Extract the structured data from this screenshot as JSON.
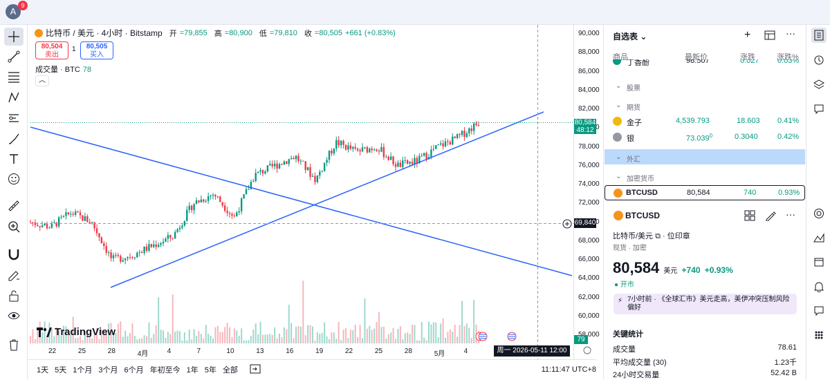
{
  "topbar": {
    "avatar_letter": "A",
    "notification_count": "9"
  },
  "chart": {
    "symbol_line": "比特币 / 美元 · 4小时 · Bitstamp",
    "ohlc": [
      {
        "label": "开",
        "value": "=79,855"
      },
      {
        "label": "高",
        "value": "=80,900"
      },
      {
        "label": "低",
        "value": "=79,810"
      },
      {
        "label": "收",
        "value": "=80,505"
      },
      {
        "label": "change",
        "value": "+661 (+0.83%)"
      }
    ],
    "sell_price": "80,504",
    "sell_label": "卖出",
    "spread": "1",
    "buy_price": "80,505",
    "buy_label": "买入",
    "volume_label": "成交量 · BTC",
    "volume_value": "78",
    "y_ticks": [
      "90,000",
      "88,000",
      "86,000",
      "84,000",
      "82,000",
      "80,000",
      "78,000",
      "76,000",
      "74,000",
      "72,000",
      "70,000",
      "68,000",
      "66,000",
      "64,000",
      "62,000",
      "60,000",
      "58,000"
    ],
    "last_price_tag": "80,584",
    "countdown": "48:12",
    "crosshair_price": "69,840",
    "volume_tag": "79",
    "x_ticks": [
      "22",
      "25",
      "28",
      "4月",
      "4",
      "7",
      "10",
      "13",
      "16",
      "19",
      "22",
      "25",
      "28",
      "5月",
      "4",
      "7"
    ],
    "crosshair_date": "周一  2026-05-11   12:00",
    "logo_text": "TradingView"
  },
  "chart_data": {
    "type": "candlestick",
    "title": "比特币 / 美元 · 4小时 · Bitstamp",
    "ylim": [
      57000,
      91000
    ],
    "x_range": [
      "3月20日",
      "5月11日"
    ],
    "approx_close_path": [
      {
        "x": "3/20",
        "y": 70000
      },
      {
        "x": "3/22",
        "y": 69500
      },
      {
        "x": "3/25",
        "y": 71000
      },
      {
        "x": "3/27",
        "y": 70000
      },
      {
        "x": "3/29",
        "y": 66000
      },
      {
        "x": "4/1",
        "y": 66500
      },
      {
        "x": "4/4",
        "y": 67500
      },
      {
        "x": "4/7",
        "y": 68500
      },
      {
        "x": "4/10",
        "y": 72000
      },
      {
        "x": "4/12",
        "y": 73000
      },
      {
        "x": "4/13",
        "y": 70500
      },
      {
        "x": "4/15",
        "y": 75000
      },
      {
        "x": "4/17",
        "y": 76000
      },
      {
        "x": "4/19",
        "y": 77000
      },
      {
        "x": "4/20",
        "y": 74500
      },
      {
        "x": "4/22",
        "y": 78500
      },
      {
        "x": "4/25",
        "y": 77500
      },
      {
        "x": "4/27",
        "y": 78000
      },
      {
        "x": "4/29",
        "y": 76000
      },
      {
        "x": "5/1",
        "y": 76500
      },
      {
        "x": "5/3",
        "y": 78000
      },
      {
        "x": "5/5",
        "y": 79000
      },
      {
        "x": "5/6",
        "y": 80584
      }
    ]
  },
  "bottombar": {
    "ranges": [
      "1天",
      "5天",
      "1个月",
      "3个月",
      "6个月",
      "年初至今",
      "1年",
      "5年",
      "全部"
    ],
    "clock": "11:11:47 UTC+8"
  },
  "watchlist": {
    "title": "自选表",
    "headers": [
      "商品",
      "最新价",
      "涨跌",
      "涨跌%"
    ],
    "partial_row": {
      "name": "丁香酚",
      "price": "98.507",
      "change": "0.027",
      "pct": "0.03%"
    },
    "sections": {
      "stocks": "股票",
      "futures": "期货",
      "forex": "外汇",
      "crypto": "加密货币"
    },
    "futures_rows": [
      {
        "name": "金子",
        "price": "4,539.793",
        "change": "18.603",
        "pct": "0.41%"
      },
      {
        "name": "银",
        "price": "73.039",
        "price_sup": "0",
        "change": "0.3040",
        "pct": "0.42%"
      }
    ],
    "btc_row": {
      "name": "BTCUSD",
      "price": "80,584",
      "change": "740",
      "pct": "0.93%"
    }
  },
  "details": {
    "symbol": "BTCUSD",
    "full_name": "比特币/美元",
    "exchange": "位印章",
    "tags": "现货 · 加密",
    "price": "80,584",
    "currency": "美元",
    "change": "+740",
    "change_pct": "+0.93%",
    "market_status": "开市",
    "news": "7小时前 · 《全球汇市》美元走高，美伊冲突压制风险偏好",
    "stats_title": "关键统计",
    "stats": [
      {
        "label": "成交量",
        "value": "78.61"
      },
      {
        "label": "平均成交量 (30)",
        "value": "1.23千"
      },
      {
        "label": "24小时交易量",
        "value": "52.42 B"
      }
    ]
  },
  "colors": {
    "up": "#089981",
    "down": "#f23645",
    "trendline": "#2962ff",
    "accent": "#2962ff"
  },
  "icons": {
    "left_toolbar": [
      "crosshair-icon",
      "trendline-icon",
      "fib-icon",
      "pattern-icon",
      "projection-icon",
      "brush-icon",
      "text-icon",
      "emoji-icon",
      "ruler-icon",
      "zoom-icon",
      "magnet-icon",
      "lock-draw-icon",
      "lock-icon",
      "eye-icon",
      "trash-icon"
    ],
    "right_toolbar": [
      "watchlist-icon",
      "alarm-icon",
      "layers-icon",
      "chat-icon",
      "target-icon",
      "ideas-icon",
      "calendar-icon",
      "notifications-icon",
      "help-icon",
      "apps-icon"
    ]
  }
}
